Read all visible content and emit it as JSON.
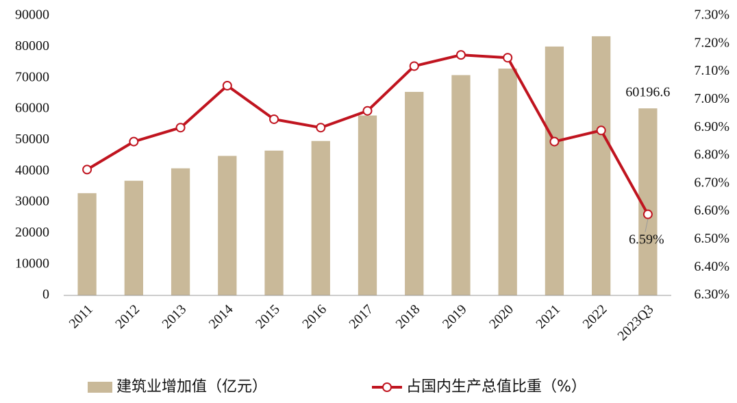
{
  "chart_data": {
    "type": "bar-line",
    "categories": [
      "2011",
      "2012",
      "2013",
      "2014",
      "2015",
      "2016",
      "2017",
      "2018",
      "2019",
      "2020",
      "2021",
      "2022",
      "2023Q3"
    ],
    "series": [
      {
        "name": "建筑业增加值（亿元）",
        "type": "bar",
        "color": "#c9b999",
        "values": [
          32900,
          36900,
          40900,
          44900,
          46600,
          49700,
          57900,
          65500,
          70900,
          73000,
          80100,
          83400,
          60196.6
        ],
        "value_labels": [
          null,
          null,
          null,
          null,
          null,
          null,
          null,
          null,
          null,
          null,
          null,
          null,
          "60196.6"
        ]
      },
      {
        "name": "占国内生产总值比重（%）",
        "type": "line",
        "axis": "y2",
        "color": "#c0141f",
        "values": [
          6.75,
          6.85,
          6.9,
          7.05,
          6.93,
          6.9,
          6.96,
          7.12,
          7.16,
          7.15,
          6.85,
          6.89,
          6.59
        ],
        "value_labels": [
          null,
          null,
          null,
          null,
          null,
          null,
          null,
          null,
          null,
          null,
          null,
          null,
          "6.59%"
        ]
      }
    ],
    "ylim": [
      0,
      90000
    ],
    "yticks": [
      0,
      10000,
      20000,
      30000,
      40000,
      50000,
      60000,
      70000,
      80000,
      90000
    ],
    "y2lim": [
      6.3,
      7.3
    ],
    "y2ticks": [
      {
        "value": 6.3,
        "label": "6.30%"
      },
      {
        "value": 6.4,
        "label": "6.40%"
      },
      {
        "value": 6.5,
        "label": "6.50%"
      },
      {
        "value": 6.6,
        "label": "6.60%"
      },
      {
        "value": 6.7,
        "label": "6.70%"
      },
      {
        "value": 6.8,
        "label": "6.80%"
      },
      {
        "value": 6.9,
        "label": "6.90%"
      },
      {
        "value": 7.0,
        "label": "7.00%"
      },
      {
        "value": 7.1,
        "label": "7.10%"
      },
      {
        "value": 7.2,
        "label": "7.20%"
      },
      {
        "value": 7.3,
        "label": "7.30%"
      }
    ],
    "grid": false
  }
}
